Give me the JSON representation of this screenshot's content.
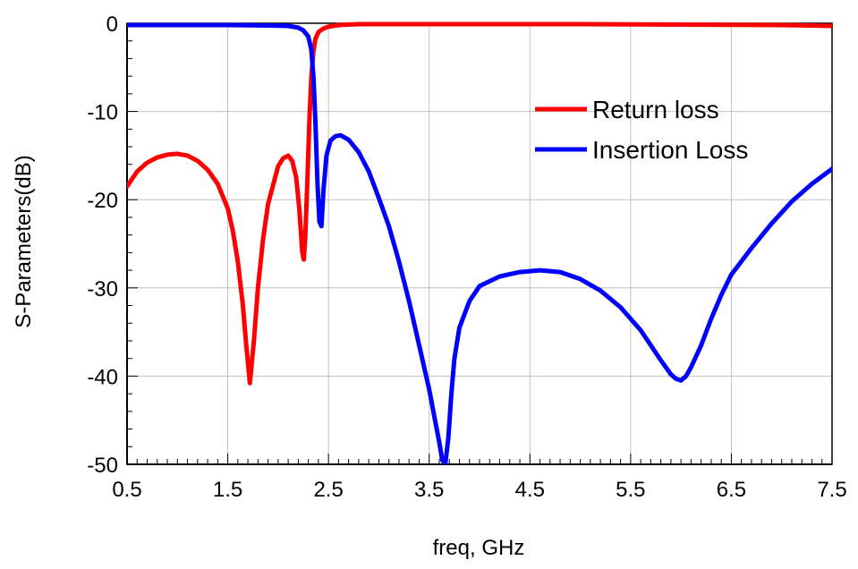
{
  "chart_data": {
    "type": "line",
    "title": "",
    "xlabel": "freq, GHz",
    "ylabel": "S-Parameters(dB)",
    "xlim": [
      0.5,
      7.5
    ],
    "ylim": [
      -50,
      0
    ],
    "x_ticks": [
      "0.5",
      "1.5",
      "2.5",
      "3.5",
      "4.5",
      "5.5",
      "6.5",
      "7.5"
    ],
    "y_ticks": [
      "0",
      "-10",
      "-20",
      "-30",
      "-40",
      "-50"
    ],
    "grid": true,
    "legend_position": "top-right",
    "series": [
      {
        "name": "Return loss",
        "color": "#ff0000",
        "x": [
          0.5,
          0.6,
          0.7,
          0.8,
          0.9,
          1.0,
          1.1,
          1.2,
          1.3,
          1.4,
          1.5,
          1.55,
          1.6,
          1.65,
          1.68,
          1.72,
          1.76,
          1.8,
          1.85,
          1.9,
          2.0,
          2.05,
          2.1,
          2.14,
          2.18,
          2.21,
          2.24,
          2.255,
          2.27,
          2.29,
          2.31,
          2.33,
          2.35,
          2.37,
          2.4,
          2.45,
          2.5,
          2.6,
          2.8,
          3.0,
          4.0,
          5.0,
          6.0,
          7.0,
          7.5
        ],
        "y": [
          -18.5,
          -16.8,
          -15.8,
          -15.2,
          -14.9,
          -14.8,
          -15.0,
          -15.6,
          -16.6,
          -18.2,
          -21.0,
          -23.5,
          -27.0,
          -32.0,
          -36.0,
          -40.8,
          -36.0,
          -30.0,
          -24.5,
          -20.5,
          -16.2,
          -15.3,
          -15.0,
          -15.6,
          -17.5,
          -21.0,
          -26.0,
          -26.8,
          -24.0,
          -18.0,
          -11.0,
          -6.0,
          -3.2,
          -1.8,
          -1.0,
          -0.6,
          -0.4,
          -0.2,
          -0.1,
          -0.1,
          -0.1,
          -0.1,
          -0.15,
          -0.2,
          -0.3
        ]
      },
      {
        "name": "Insertion Loss",
        "color": "#0000ff",
        "x": [
          0.5,
          1.0,
          1.5,
          1.9,
          2.1,
          2.2,
          2.25,
          2.3,
          2.33,
          2.35,
          2.37,
          2.39,
          2.41,
          2.43,
          2.45,
          2.48,
          2.52,
          2.57,
          2.62,
          2.7,
          2.8,
          2.9,
          3.0,
          3.1,
          3.2,
          3.3,
          3.4,
          3.5,
          3.55,
          3.6,
          3.63,
          3.66,
          3.69,
          3.72,
          3.75,
          3.8,
          3.9,
          4.0,
          4.2,
          4.4,
          4.6,
          4.8,
          5.0,
          5.2,
          5.4,
          5.6,
          5.7,
          5.8,
          5.9,
          5.95,
          6.0,
          6.05,
          6.1,
          6.2,
          6.3,
          6.4,
          6.5,
          6.7,
          6.9,
          7.1,
          7.3,
          7.5
        ],
        "y": [
          -0.2,
          -0.2,
          -0.2,
          -0.25,
          -0.3,
          -0.5,
          -0.8,
          -1.5,
          -3.0,
          -6.0,
          -11.0,
          -18.0,
          -22.5,
          -23.0,
          -19.0,
          -15.0,
          -13.3,
          -12.8,
          -12.7,
          -13.2,
          -14.6,
          -16.8,
          -19.8,
          -23.0,
          -27.0,
          -31.5,
          -36.5,
          -41.5,
          -44.5,
          -47.5,
          -49.5,
          -50.0,
          -47.0,
          -42.0,
          -38.0,
          -34.5,
          -31.5,
          -29.8,
          -28.7,
          -28.2,
          -28.0,
          -28.2,
          -29.0,
          -30.3,
          -32.2,
          -34.8,
          -36.5,
          -38.2,
          -39.8,
          -40.3,
          -40.5,
          -40.0,
          -39.0,
          -36.5,
          -33.5,
          -30.8,
          -28.5,
          -25.5,
          -22.7,
          -20.2,
          -18.2,
          -16.5
        ]
      }
    ]
  }
}
